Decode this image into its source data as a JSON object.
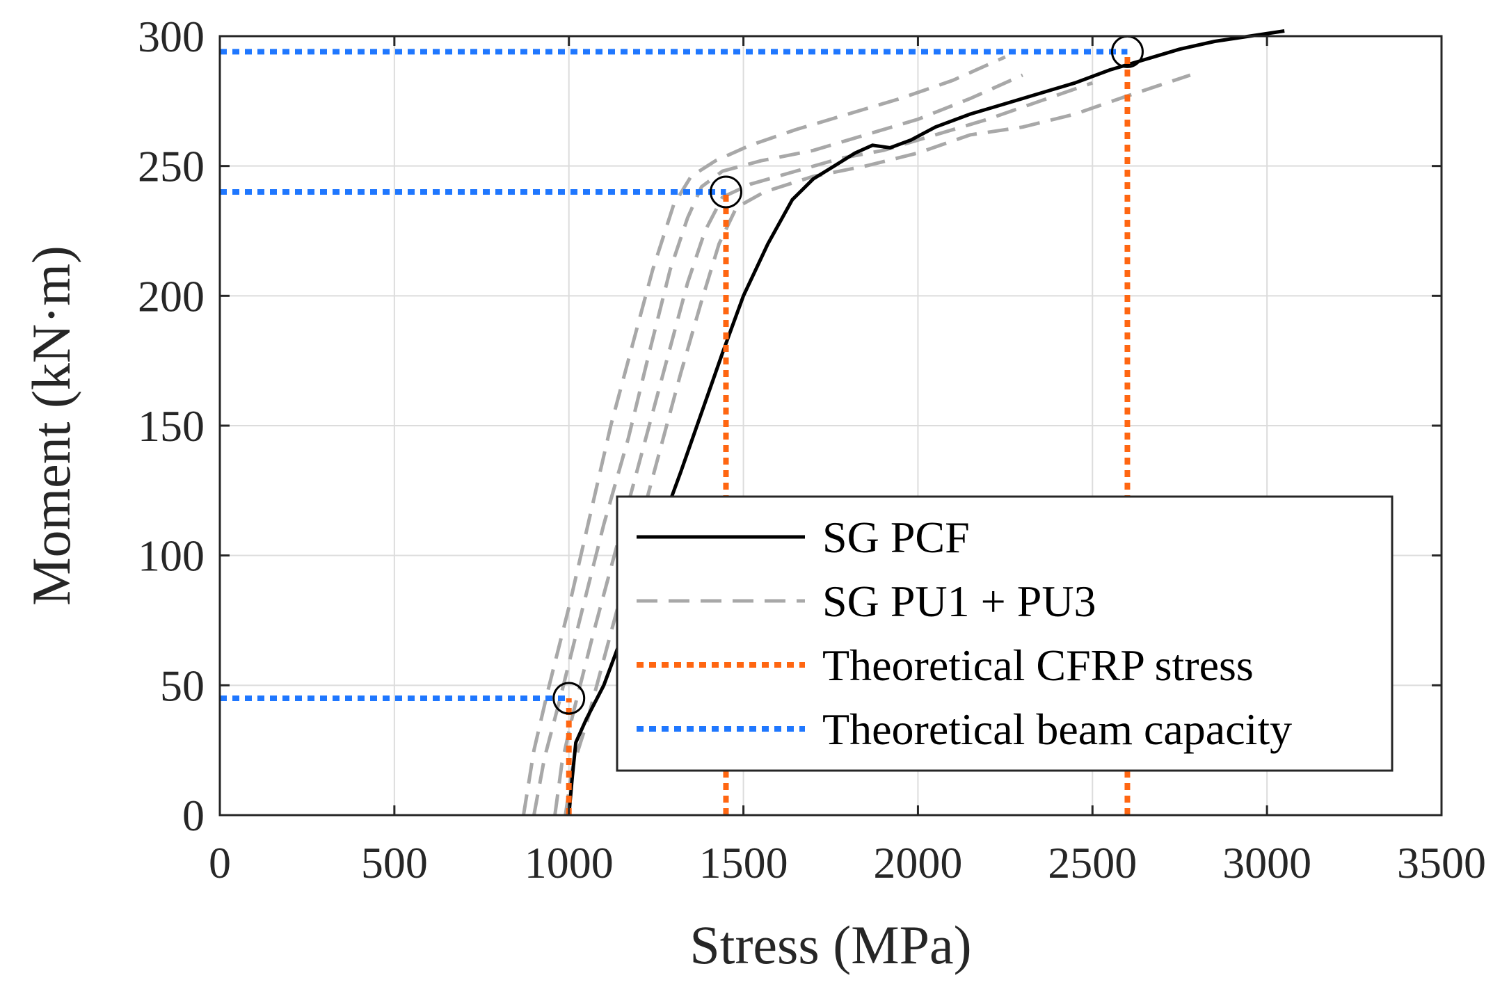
{
  "chart_data": {
    "type": "line",
    "xlabel": "Stress (MPa)",
    "ylabel": "Moment (kN·m)",
    "xlim": [
      0,
      3500
    ],
    "ylim": [
      0,
      300
    ],
    "xticks": [
      0,
      500,
      1000,
      1500,
      2000,
      2500,
      3000,
      3500
    ],
    "yticks": [
      0,
      50,
      100,
      150,
      200,
      250,
      300
    ],
    "grid": true,
    "legend_position": "bottom-right",
    "series": [
      {
        "name": "SG PCF",
        "style": "solid",
        "color": "#000000",
        "x": [
          1000,
          1010,
          1020,
          1050,
          1100,
          1150,
          1200,
          1260,
          1320,
          1380,
          1440,
          1500,
          1570,
          1640,
          1700,
          1760,
          1820,
          1870,
          1920,
          1980,
          2050,
          2150,
          2250,
          2350,
          2450,
          2550,
          2650,
          2750,
          2850,
          2950,
          3050
        ],
        "y": [
          0,
          15,
          28,
          37,
          50,
          68,
          88,
          110,
          132,
          155,
          178,
          200,
          220,
          237,
          245,
          250,
          255,
          258,
          257,
          260,
          265,
          270,
          274,
          278,
          282,
          287,
          291,
          295,
          298,
          300,
          302
        ]
      },
      {
        "name": "SG PU1 + PU3",
        "style": "dashed",
        "color": "#a8a8a8",
        "x": [
          870,
          900,
          940,
          1000,
          1060,
          1120,
          1180,
          1240,
          1300,
          1350,
          1420,
          1520,
          1650,
          1800,
          1950,
          2100,
          2250
        ],
        "y": [
          0,
          25,
          48,
          80,
          115,
          150,
          180,
          210,
          235,
          246,
          252,
          258,
          264,
          270,
          276,
          283,
          292
        ]
      },
      {
        "name": "SG PU1 + PU3 (2)",
        "style": "dashed",
        "color": "#a8a8a8",
        "x": [
          900,
          930,
          975,
          1040,
          1100,
          1170,
          1230,
          1290,
          1340,
          1380,
          1440,
          1550,
          1700,
          1850,
          2000,
          2150,
          2300
        ],
        "y": [
          0,
          22,
          45,
          80,
          112,
          145,
          178,
          210,
          230,
          242,
          248,
          252,
          256,
          262,
          268,
          276,
          285
        ]
      },
      {
        "name": "SG PU1 + PU3 (3)",
        "style": "dashed",
        "color": "#a8a8a8",
        "x": [
          960,
          980,
          1010,
          1070,
          1140,
          1210,
          1280,
          1340,
          1390,
          1440,
          1520,
          1650,
          1780,
          1900,
          2050,
          2200,
          2350,
          2500
        ],
        "y": [
          0,
          20,
          38,
          70,
          105,
          140,
          175,
          205,
          225,
          238,
          243,
          248,
          253,
          256,
          262,
          268,
          275,
          282
        ]
      },
      {
        "name": "SG PU1 + PU3 (4)",
        "style": "dashed",
        "color": "#a8a8a8",
        "x": [
          990,
          1010,
          1050,
          1110,
          1180,
          1250,
          1320,
          1380,
          1430,
          1480,
          1560,
          1700,
          1850,
          2000,
          2150,
          2300,
          2450,
          2600,
          2780
        ],
        "y": [
          0,
          18,
          35,
          65,
          100,
          135,
          170,
          198,
          220,
          234,
          240,
          246,
          250,
          255,
          262,
          265,
          270,
          277,
          285
        ]
      }
    ],
    "reference_lines": [
      {
        "name": "Theoretical CFRP stress",
        "orientation": "vertical",
        "style": "dotted",
        "color": "#ff6611",
        "values": [
          1000,
          1450,
          2600
        ],
        "to_moment": [
          45,
          240,
          294
        ]
      },
      {
        "name": "Theoretical beam capacity",
        "orientation": "horizontal",
        "style": "dotted",
        "color": "#1f77ff",
        "values": [
          45,
          240,
          294
        ],
        "to_stress": [
          1000,
          1450,
          2600
        ]
      }
    ],
    "markers": [
      {
        "x": 1000,
        "y": 45,
        "shape": "circle"
      },
      {
        "x": 1450,
        "y": 240,
        "shape": "circle"
      },
      {
        "x": 2600,
        "y": 294,
        "shape": "circle"
      }
    ],
    "legend": [
      {
        "label": "SG PCF",
        "style": "solid",
        "color": "#000000"
      },
      {
        "label": "SG PU1 + PU3",
        "style": "dashed",
        "color": "#a8a8a8"
      },
      {
        "label": "Theoretical CFRP stress",
        "style": "dotted",
        "color": "#ff6611"
      },
      {
        "label": "Theoretical beam capacity",
        "style": "dotted",
        "color": "#1f77ff"
      }
    ]
  }
}
